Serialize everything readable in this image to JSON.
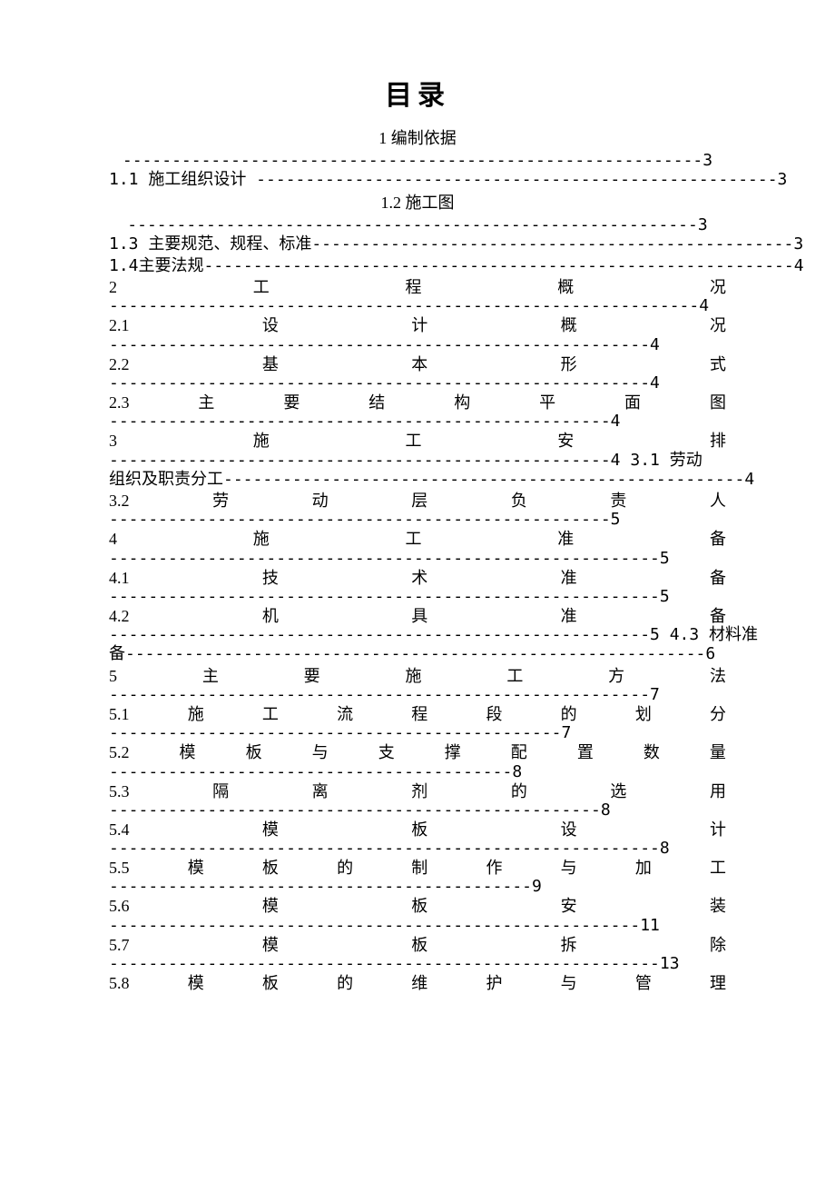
{
  "title": "目录",
  "subtitle": "1 编制依据",
  "entries": [
    {
      "type": "dash-center",
      "text": "-----------------------------------------------------------3"
    },
    {
      "type": "leftline",
      "text": "1.1 施工组织设计 -----------------------------------------------------3"
    },
    {
      "type": "center",
      "text": "1.2 施工图"
    },
    {
      "type": "dash-center",
      "text": "----------------------------------------------------------3"
    },
    {
      "type": "leftline",
      "text": "1.3 主要规范、规程、标准-------------------------------------------------3"
    },
    {
      "type": "leftline",
      "text": "1.4主要法规------------------------------------------------------------4"
    },
    {
      "type": "spread-dash",
      "parts": [
        "2",
        "工",
        "程",
        "概",
        "况"
      ],
      "dash": "------------------------------------------------------------4"
    },
    {
      "type": "spread-dash",
      "parts": [
        "2.1",
        "设",
        "计",
        "概",
        "况"
      ],
      "dash": "-------------------------------------------------------4"
    },
    {
      "type": "spread-dash",
      "parts": [
        "2.2",
        "基",
        "本",
        "形",
        "式"
      ],
      "dash": "-------------------------------------------------------4"
    },
    {
      "type": "spread-dash",
      "parts": [
        "2.3",
        "主",
        "要",
        "结",
        "构",
        "平",
        "面",
        "图"
      ],
      "dash": "---------------------------------------------------4"
    },
    {
      "type": "spread-dash-tail",
      "parts": [
        "3",
        "施",
        "工",
        "安",
        "排"
      ],
      "dash": "---------------------------------------------------4 3.1 劳动"
    },
    {
      "type": "leftline",
      "text": "组织及职责分工-----------------------------------------------------4"
    },
    {
      "type": "spread-dash",
      "parts": [
        "3.2",
        "劳",
        "动",
        "层",
        "负",
        "责",
        "人"
      ],
      "dash": "---------------------------------------------------5"
    },
    {
      "type": "spread-dash",
      "parts": [
        "4",
        "施",
        "工",
        "准",
        "备"
      ],
      "dash": "--------------------------------------------------------5"
    },
    {
      "type": "spread-dash",
      "parts": [
        "4.1",
        "技",
        "术",
        "准",
        "备"
      ],
      "dash": "--------------------------------------------------------5"
    },
    {
      "type": "spread-dash-tail",
      "parts": [
        "4.2",
        "机",
        "具",
        "准",
        "备"
      ],
      "dash": "-------------------------------------------------------5 4.3 材料准"
    },
    {
      "type": "leftline",
      "text": "备-----------------------------------------------------------6"
    },
    {
      "type": "spread-dash",
      "parts": [
        "5",
        "主",
        "要",
        "施",
        "工",
        "方",
        "法"
      ],
      "dash": "-------------------------------------------------------7"
    },
    {
      "type": "spread-dash",
      "parts": [
        "5.1",
        "施",
        "工",
        "流",
        "程",
        "段",
        "的",
        "划",
        "分"
      ],
      "dash": "----------------------------------------------7"
    },
    {
      "type": "spread-dash",
      "parts": [
        "5.2",
        "模",
        "板",
        "与",
        "支",
        "撑",
        "配",
        "置",
        "数",
        "量"
      ],
      "dash": "-----------------------------------------8"
    },
    {
      "type": "spread-dash",
      "parts": [
        "5.3",
        "隔",
        "离",
        "剂",
        "的",
        "选",
        "用"
      ],
      "dash": "--------------------------------------------------8"
    },
    {
      "type": "spread-dash",
      "parts": [
        "5.4",
        "模",
        "板",
        "设",
        "计"
      ],
      "dash": "--------------------------------------------------------8"
    },
    {
      "type": "spread-dash",
      "parts": [
        "5.5",
        "模",
        "板",
        "的",
        "制",
        "作",
        "与",
        "加",
        "工"
      ],
      "dash": "-------------------------------------------9"
    },
    {
      "type": "spread-dash",
      "parts": [
        "5.6",
        "模",
        "板",
        "安",
        "装"
      ],
      "dash": "------------------------------------------------------11"
    },
    {
      "type": "spread-dash",
      "parts": [
        "5.7",
        "模",
        "板",
        "拆",
        "除"
      ],
      "dash": "--------------------------------------------------------13"
    },
    {
      "type": "spread",
      "parts": [
        "5.8",
        "模",
        "板",
        "的",
        "维",
        "护",
        "与",
        "管",
        "理"
      ]
    }
  ]
}
